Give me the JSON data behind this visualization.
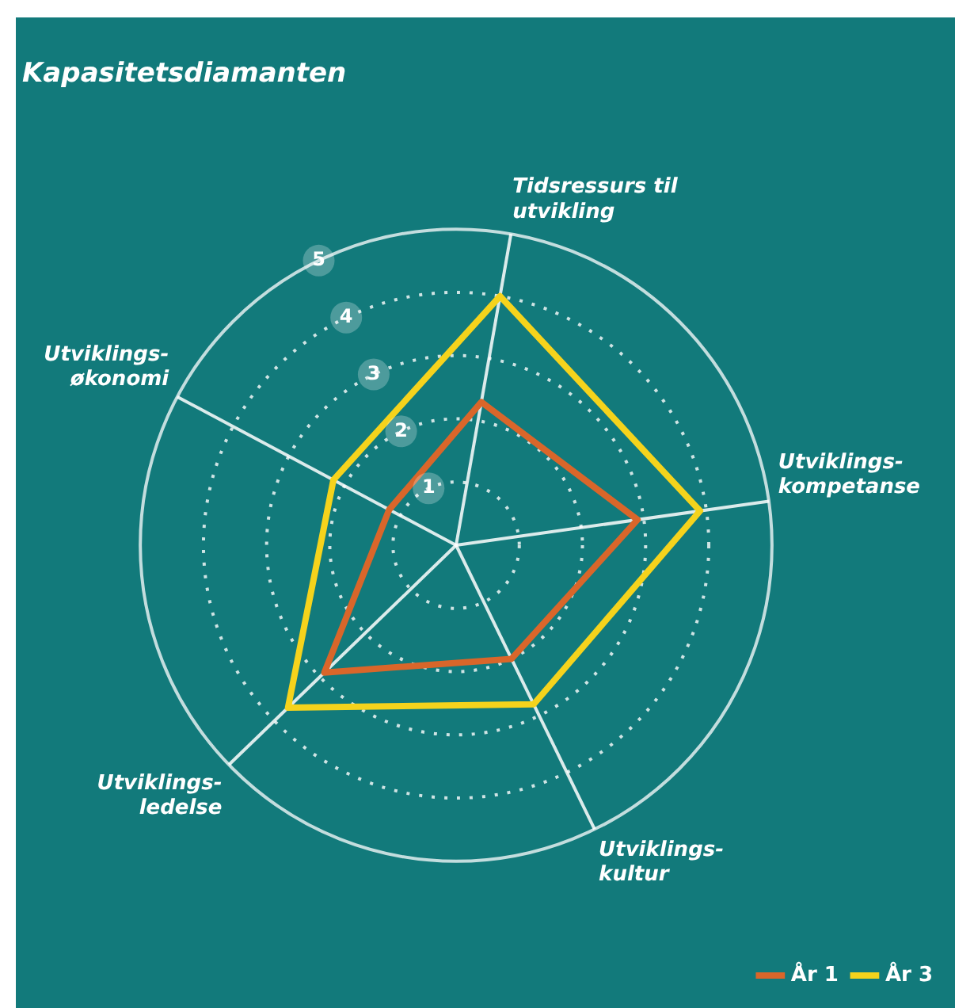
{
  "chart_data": {
    "type": "radar",
    "title": "Kapasitetsdiamanten",
    "categories": [
      "Tidsressurs til utvikling",
      "Utviklings-kompetanse",
      "Utviklings-kultur",
      "Utviklings-ledelse",
      "Utviklings-økonomi"
    ],
    "series": [
      {
        "name": "År 1",
        "color": "#d9662a",
        "values": [
          2.3,
          2.9,
          2.0,
          2.9,
          1.2
        ]
      },
      {
        "name": "År 3",
        "color": "#f5d31c",
        "values": [
          4.0,
          3.9,
          2.8,
          3.7,
          2.2
        ]
      }
    ],
    "ylim": [
      0,
      5
    ],
    "yticks": [
      1,
      2,
      3,
      4,
      5
    ],
    "grid": true,
    "legend": "bottom right",
    "marker": "none",
    "line_style": "solid"
  }
}
